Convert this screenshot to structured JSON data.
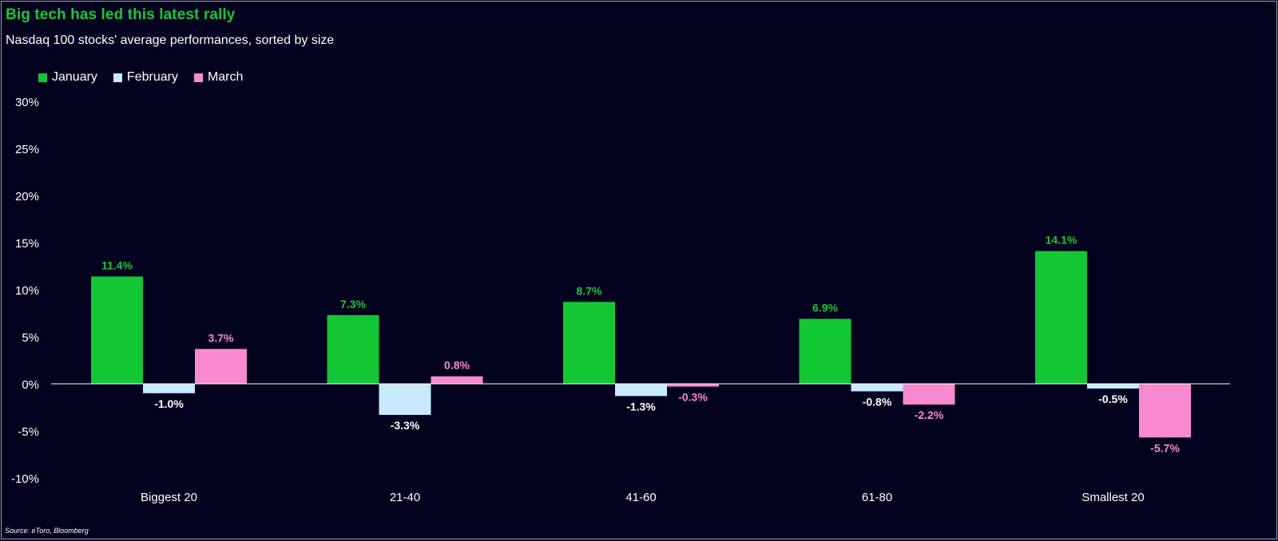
{
  "chart_data": {
    "type": "bar",
    "title": "Big tech has led this latest rally",
    "subtitle": "Nasdaq 100 stocks' average performances, sorted by size",
    "source": "Source: eToro, Bloomberg",
    "categories": [
      "Biggest 20",
      "21-40",
      "41-60",
      "61-80",
      "Smallest 20"
    ],
    "series": [
      {
        "name": "January",
        "color": "#13c634",
        "values": [
          11.4,
          7.3,
          8.7,
          6.9,
          14.1
        ],
        "labels": [
          "11.4%",
          "7.3%",
          "8.7%",
          "6.9%",
          "14.1%"
        ]
      },
      {
        "name": "February",
        "color": "#c9e9ff",
        "values": [
          -1.0,
          -3.3,
          -1.3,
          -0.8,
          -0.5
        ],
        "labels": [
          "-1.0%",
          "-3.3%",
          "-1.3%",
          "-0.8%",
          "-0.5%"
        ]
      },
      {
        "name": "March",
        "color": "#f98ad0",
        "values": [
          3.7,
          0.8,
          -0.3,
          -2.2,
          -5.7
        ],
        "labels": [
          "3.7%",
          "0.8%",
          "-0.3%",
          "-2.2%",
          "-5.7%"
        ]
      }
    ],
    "ylim": [
      -10,
      30
    ],
    "yticks": [
      30,
      25,
      20,
      15,
      10,
      5,
      0,
      -5,
      -10
    ],
    "ytick_labels": [
      "30%",
      "25%",
      "20%",
      "15%",
      "10%",
      "5%",
      "0%",
      "-5%",
      "-10%"
    ],
    "legend_position": "top-left",
    "grid": false,
    "label_colors": {
      "January": "#18c738",
      "February": "#ffffff",
      "March": "#f98ad0"
    }
  }
}
